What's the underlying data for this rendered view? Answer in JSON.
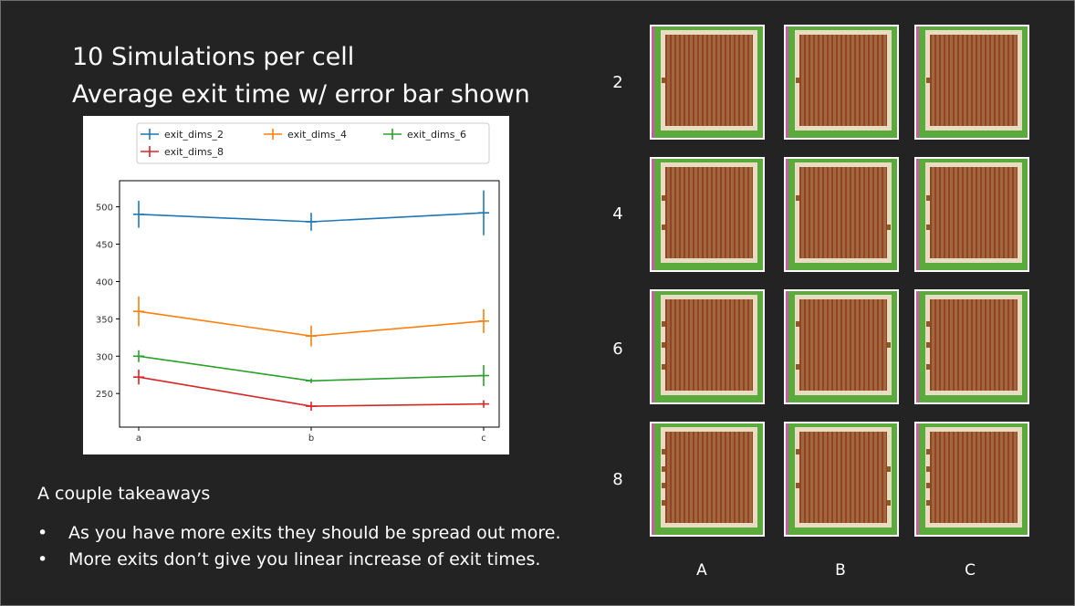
{
  "slide": {
    "title_line1": "10 Simulations per cell",
    "title_line2": "Average exit time w/ error bar shown",
    "takeaways_heading": "A couple takeaways",
    "bullet_glyph": "•",
    "bullets": [
      "As you have more exits they should be spread out more.",
      "More exits don’t give you linear increase of exit times."
    ],
    "grid": {
      "row_labels": [
        "2",
        "4",
        "6",
        "8"
      ],
      "col_labels": [
        "A",
        "B",
        "C"
      ],
      "colors": {
        "grass": "#5aab3c",
        "side_strip": "#c85aa6",
        "wall": "#e8dcc2",
        "floor": "#9c6a3c",
        "door": "#8a5a2a"
      }
    }
  },
  "chart_data": {
    "type": "line",
    "title": "",
    "xlabel": "",
    "ylabel": "",
    "categories": [
      "a",
      "b",
      "c"
    ],
    "ylim": [
      205,
      535
    ],
    "yticks": [
      250,
      300,
      350,
      400,
      450,
      500
    ],
    "grid": false,
    "legend_position": "top-center",
    "series": [
      {
        "name": "exit_dims_2",
        "color": "#1f77b4",
        "values": [
          490,
          480,
          492
        ],
        "errors": [
          18,
          12,
          30
        ]
      },
      {
        "name": "exit_dims_4",
        "color": "#ff7f0e",
        "values": [
          360,
          327,
          347
        ],
        "errors": [
          20,
          14,
          16
        ]
      },
      {
        "name": "exit_dims_6",
        "color": "#2ca02c",
        "values": [
          300,
          267,
          274
        ],
        "errors": [
          8,
          3,
          14
        ]
      },
      {
        "name": "exit_dims_8",
        "color": "#d62728",
        "values": [
          272,
          233,
          236
        ],
        "errors": [
          10,
          6,
          5
        ]
      }
    ]
  }
}
